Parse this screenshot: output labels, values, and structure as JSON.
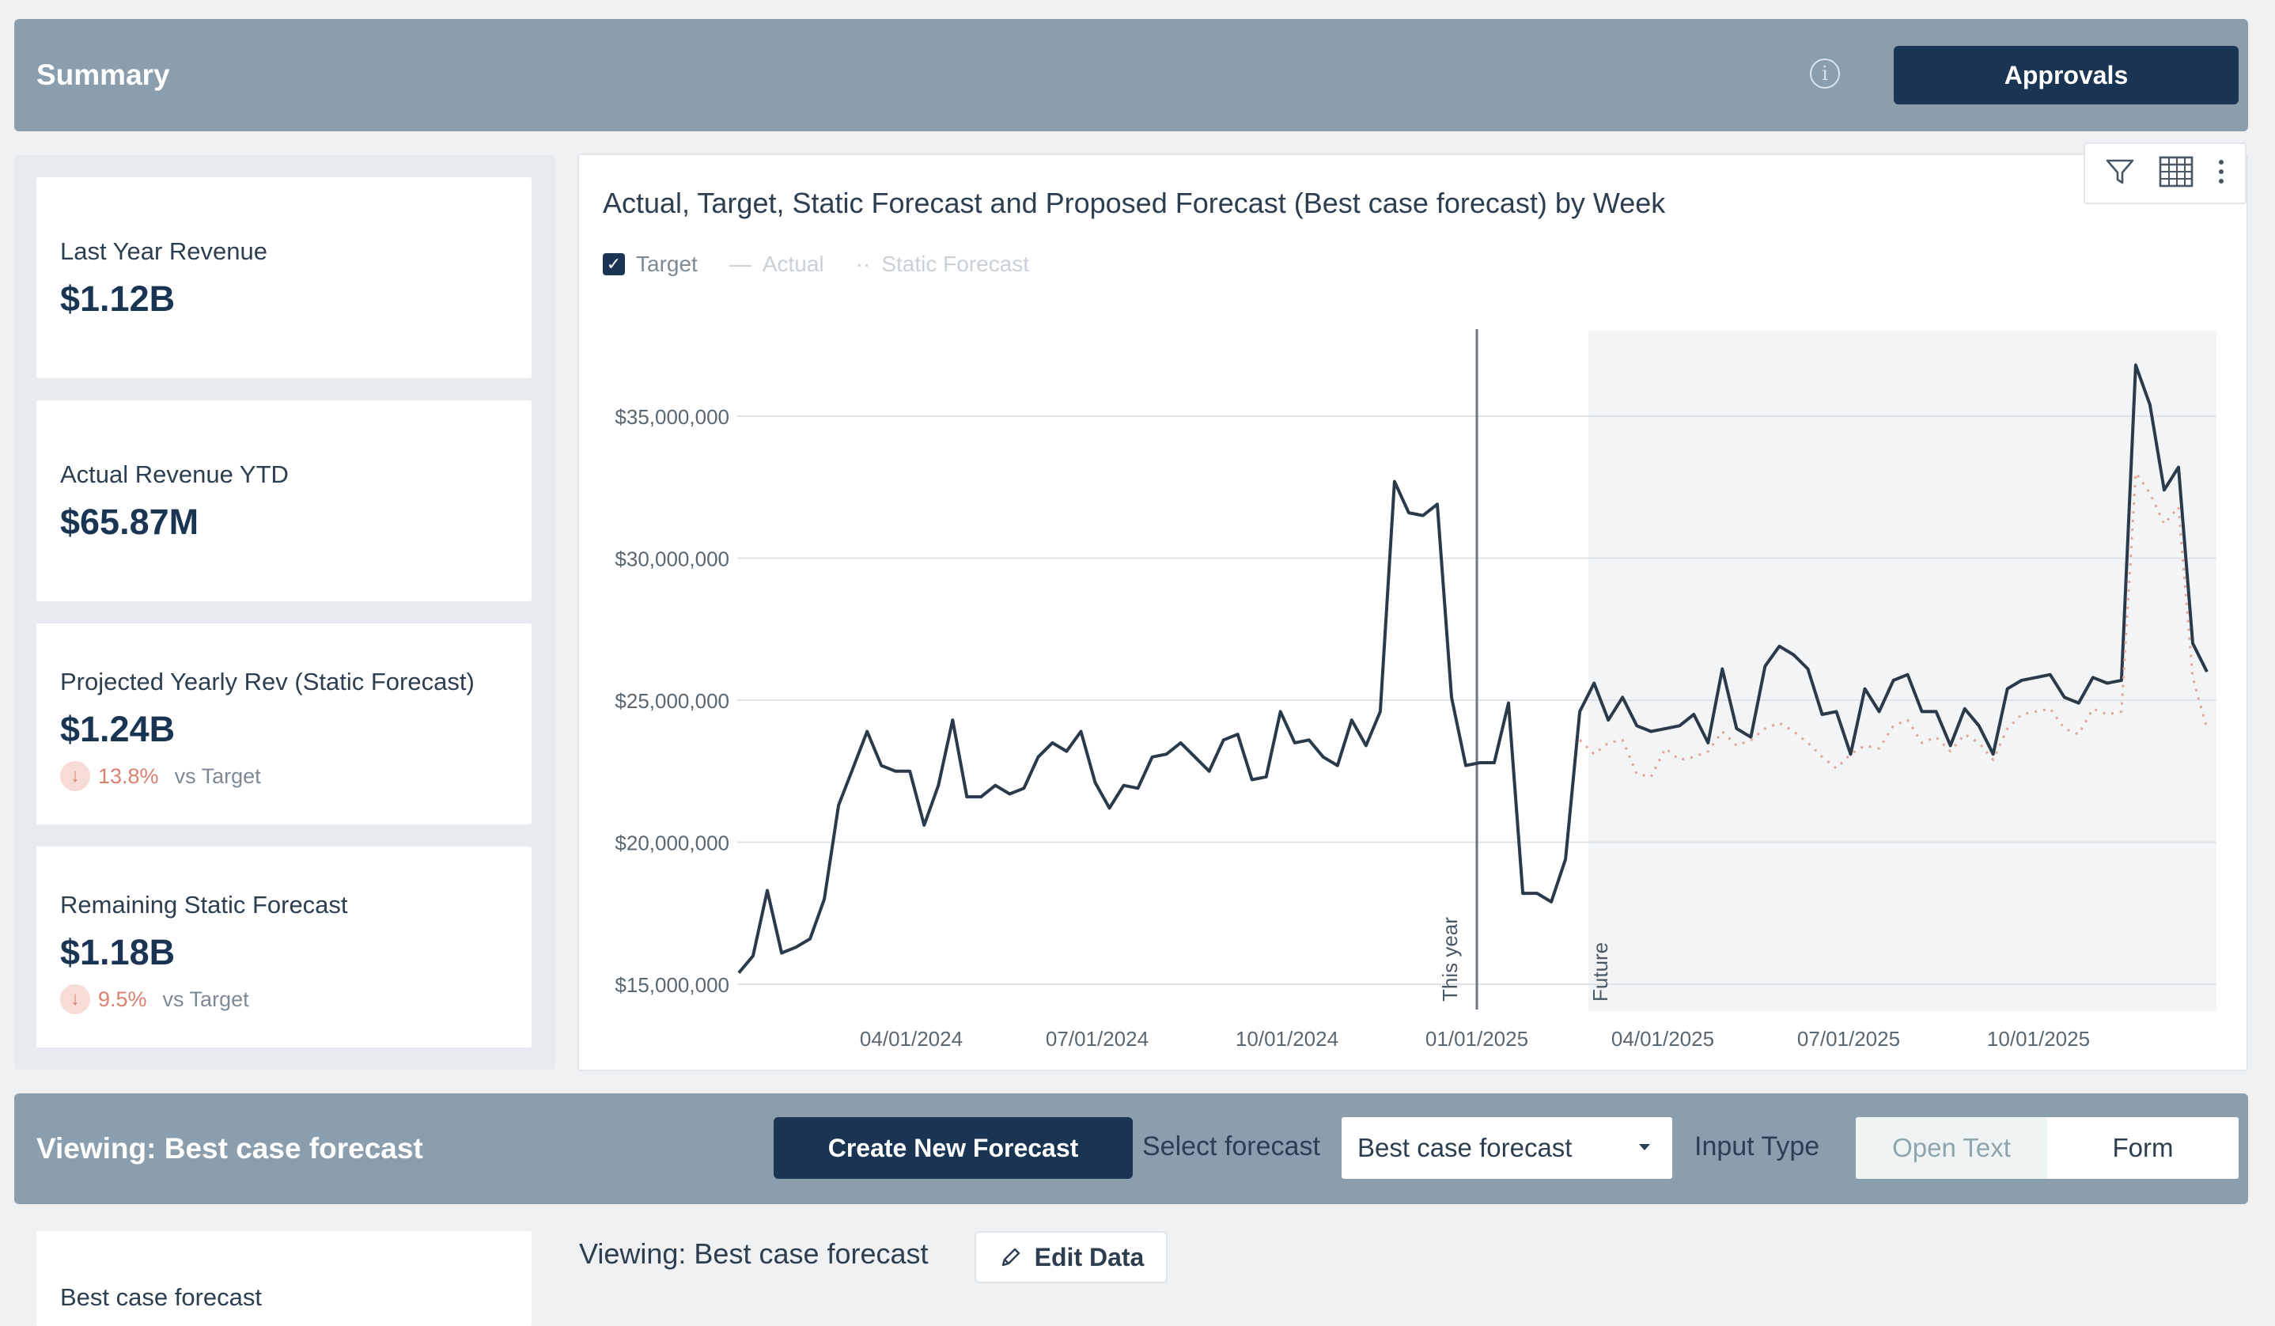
{
  "summary_bar": {
    "title": "Summary",
    "info_icon": "info-icon",
    "approvals_label": "Approvals"
  },
  "kpis": [
    {
      "label": "Last Year Revenue",
      "value": "$1.12B"
    },
    {
      "label": "Actual Revenue YTD",
      "value": "$65.87M"
    },
    {
      "label": "Projected Yearly Rev (Static Forecast)",
      "value": "$1.24B",
      "delta_pct": "13.8%",
      "delta_text": "vs Target",
      "delta_direction": "down"
    },
    {
      "label": "Remaining Static Forecast",
      "value": "$1.18B",
      "delta_pct": "9.5%",
      "delta_text": "vs Target",
      "delta_direction": "down"
    }
  ],
  "chart_toolbar": {
    "icons": [
      "filter-icon",
      "table-icon",
      "more-vertical-icon"
    ]
  },
  "chart_data": {
    "type": "line",
    "title": "Actual, Target, Static Forecast and Proposed Forecast (Best case forecast) by Week",
    "legend": [
      {
        "name": "Target",
        "checked": true,
        "swatch": "check"
      },
      {
        "name": "Actual",
        "swatch": "—"
      },
      {
        "name": "Static Forecast",
        "swatch": "··"
      }
    ],
    "y_ticks": [
      "$15,000,000",
      "$20,000,000",
      "$25,000,000",
      "$30,000,000",
      "$35,000,000"
    ],
    "x_ticks": [
      "04/01/2024",
      "07/01/2024",
      "10/01/2024",
      "01/01/2025",
      "04/01/2025",
      "07/01/2025",
      "10/01/2025"
    ],
    "ylim": [
      15000000,
      35000000
    ],
    "annotations": [
      {
        "label": "This year",
        "at": "01/01/2025"
      },
      {
        "label": "Future",
        "at": "03/03/2025"
      }
    ],
    "series": [
      {
        "name": "Target",
        "color": "#2b3a4a",
        "values": [
          15.4,
          16.0,
          18.3,
          16.1,
          16.3,
          16.6,
          18.0,
          21.3,
          22.6,
          23.9,
          22.7,
          22.5,
          22.5,
          20.6,
          22.0,
          24.3,
          21.6,
          21.6,
          22.0,
          21.7,
          21.9,
          23.0,
          23.5,
          23.2,
          23.9,
          22.1,
          21.2,
          22.0,
          21.9,
          23.0,
          23.1,
          23.5,
          23.0,
          22.5,
          23.6,
          23.8,
          22.2,
          22.3,
          24.6,
          23.5,
          23.6,
          23.0,
          22.7,
          24.3,
          23.4,
          24.6,
          32.7,
          31.6,
          31.5,
          31.9,
          25.1,
          22.7,
          22.8,
          22.8,
          24.9,
          18.2,
          18.2,
          17.9,
          19.4,
          24.6,
          25.6,
          24.3,
          25.1,
          24.1,
          23.9,
          24.0,
          24.1,
          24.5,
          23.5,
          26.1,
          24.0,
          23.7,
          26.2,
          26.9,
          26.6,
          26.1,
          24.5,
          24.6,
          23.1,
          25.4,
          24.6,
          25.7,
          25.9,
          24.6,
          24.6,
          23.4,
          24.7,
          24.1,
          23.1,
          25.4,
          25.7,
          25.8,
          25.9,
          25.1,
          24.9,
          25.8,
          25.6,
          25.7,
          36.8,
          35.4,
          32.4,
          33.2,
          27.0,
          26.0
        ]
      },
      {
        "name": "Static Forecast",
        "color": "#e3a79a",
        "values": [
          null,
          null,
          null,
          null,
          null,
          null,
          null,
          null,
          null,
          null,
          null,
          null,
          null,
          null,
          null,
          null,
          null,
          null,
          null,
          null,
          null,
          null,
          null,
          null,
          null,
          null,
          null,
          null,
          null,
          null,
          null,
          null,
          null,
          null,
          null,
          null,
          null,
          null,
          null,
          null,
          null,
          null,
          null,
          null,
          null,
          null,
          null,
          null,
          null,
          null,
          null,
          null,
          null,
          null,
          null,
          null,
          null,
          null,
          null,
          23.6,
          23.1,
          23.5,
          23.6,
          22.4,
          22.3,
          23.3,
          22.9,
          23.0,
          23.2,
          23.9,
          23.4,
          23.6,
          24.0,
          24.2,
          23.9,
          23.5,
          23.0,
          22.6,
          23.1,
          23.4,
          23.3,
          24.1,
          24.3,
          23.5,
          23.7,
          23.2,
          23.8,
          23.5,
          22.9,
          24.0,
          24.5,
          24.6,
          24.7,
          24.0,
          23.8,
          24.7,
          24.5,
          24.6,
          33.0,
          32.3,
          31.2,
          31.8,
          25.8,
          24.0
        ]
      }
    ]
  },
  "viewing_bar": {
    "title": "Viewing: Best case forecast",
    "create_label": "Create New Forecast",
    "select_label": "Select forecast",
    "select_value": "Best case forecast",
    "input_type_label": "Input Type",
    "toggle_options": [
      "Open Text",
      "Form"
    ]
  },
  "bottom": {
    "card_label": "Best case forecast",
    "viewing_text": "Viewing: Best case forecast",
    "edit_label": "Edit Data",
    "edit_icon": "pencil-icon"
  }
}
